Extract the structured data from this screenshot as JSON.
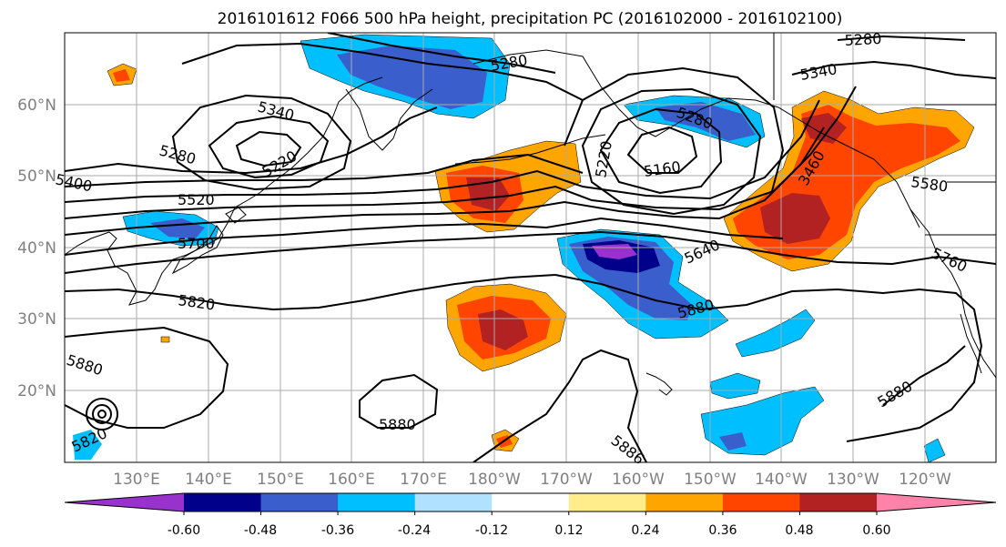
{
  "title": "2016101612 F066 500 hPa height, precipitation PC (2016102000 - 2016102100)",
  "map": {
    "lat_labels": [
      "60°N",
      "50°N",
      "40°N",
      "30°N",
      "20°N"
    ],
    "lon_labels": [
      "130°E",
      "140°E",
      "150°E",
      "160°E",
      "170°E",
      "180°W",
      "170°W",
      "160°W",
      "150°W",
      "140°W",
      "130°W",
      "120°W"
    ],
    "grid": true,
    "contour_labels": [
      "5280",
      "5340",
      "5280",
      "5220",
      "5400",
      "5520",
      "5700",
      "5820",
      "5880",
      "5880",
      "5280",
      "5340",
      "5280",
      "5220",
      "5160",
      "5640",
      "5880",
      "3460",
      "5580",
      "5760",
      "5880",
      "5886",
      "5820"
    ]
  },
  "colorbar": {
    "tick_labels": [
      "-0.60",
      "-0.48",
      "-0.36",
      "-0.24",
      "-0.12",
      "0.12",
      "0.24",
      "0.36",
      "0.48",
      "0.60"
    ],
    "colors": [
      "#9932cc",
      "#00008b",
      "#3a5fcd",
      "#00bfff",
      "#b0e2ff",
      "#ffffff",
      "#ffec8b",
      "#ffa500",
      "#ff4500",
      "#b22222",
      "#ff82ab"
    ]
  }
}
